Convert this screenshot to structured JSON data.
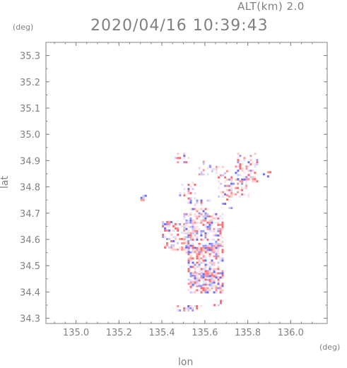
{
  "header": {
    "altitude_label": "ALT(km) 2.0",
    "timestamp": "2020/04/16 10:39:43"
  },
  "axes": {
    "y_unit": "(deg)",
    "x_unit": "(deg)",
    "x_label": "lon",
    "y_label": "lat"
  },
  "colors": {
    "axis": "#808080",
    "positive": "#ff6060",
    "negative": "#6060ff"
  },
  "chart_data": {
    "type": "heatmap",
    "title": "2020/04/16 10:39:43",
    "subtitle": "ALT(km) 2.0",
    "xlabel": "lon",
    "ylabel": "lat",
    "x_unit": "(deg)",
    "y_unit": "(deg)",
    "xlim": [
      134.86,
      136.17
    ],
    "ylim": [
      34.28,
      35.35
    ],
    "x_ticks": [
      135.0,
      135.2,
      135.4,
      135.6,
      135.8,
      136.0
    ],
    "x_tick_labels": [
      "135.0",
      "135.2",
      "135.4",
      "135.6",
      "135.8",
      "136.0"
    ],
    "y_ticks": [
      34.3,
      34.4,
      34.5,
      34.6,
      34.7,
      34.8,
      34.9,
      35.0,
      35.1,
      35.2,
      35.3
    ],
    "y_tick_labels": [
      "34.3",
      "34.4",
      "34.5",
      "34.6",
      "34.7",
      "34.8",
      "34.9",
      "35.0",
      "35.1",
      "35.2",
      "35.3"
    ],
    "grid": false,
    "legend": "none",
    "clusters": [
      {
        "lon": [
          135.5,
          135.68
        ],
        "lat": [
          34.55,
          34.7
        ],
        "density": 0.55
      },
      {
        "lon": [
          135.52,
          135.68
        ],
        "lat": [
          34.4,
          34.58
        ],
        "density": 0.55
      },
      {
        "lon": [
          135.53,
          135.64
        ],
        "lat": [
          34.42,
          34.48
        ],
        "density": 0.5
      },
      {
        "lon": [
          135.4,
          135.52
        ],
        "lat": [
          34.56,
          34.67
        ],
        "density": 0.35
      },
      {
        "lon": [
          135.52,
          135.62
        ],
        "lat": [
          34.7,
          34.76
        ],
        "density": 0.25
      },
      {
        "lon": [
          135.66,
          135.8
        ],
        "lat": [
          34.76,
          34.84
        ],
        "density": 0.35
      },
      {
        "lon": [
          135.74,
          135.84
        ],
        "lat": [
          34.82,
          34.93
        ],
        "density": 0.35
      },
      {
        "lon": [
          135.62,
          135.7
        ],
        "lat": [
          34.84,
          34.88
        ],
        "density": 0.25
      },
      {
        "lon": [
          135.57,
          135.62
        ],
        "lat": [
          34.84,
          34.9
        ],
        "density": 0.3
      },
      {
        "lon": [
          135.45,
          135.53
        ],
        "lat": [
          34.89,
          34.93
        ],
        "density": 0.3
      },
      {
        "lon": [
          135.48,
          135.55
        ],
        "lat": [
          34.77,
          34.82
        ],
        "density": 0.2
      },
      {
        "lon": [
          135.68,
          135.72
        ],
        "lat": [
          34.72,
          34.78
        ],
        "density": 0.2
      },
      {
        "lon": [
          135.44,
          135.58
        ],
        "lat": [
          34.33,
          34.35
        ],
        "density": 0.3
      },
      {
        "lon": [
          135.64,
          135.68
        ],
        "lat": [
          34.35,
          34.37
        ],
        "density": 0.3
      },
      {
        "lon": [
          135.87,
          135.9
        ],
        "lat": [
          34.84,
          34.86
        ],
        "density": 0.3
      },
      {
        "lon": [
          135.3,
          135.32
        ],
        "lat": [
          34.75,
          34.77
        ],
        "density": 0.5
      }
    ]
  }
}
